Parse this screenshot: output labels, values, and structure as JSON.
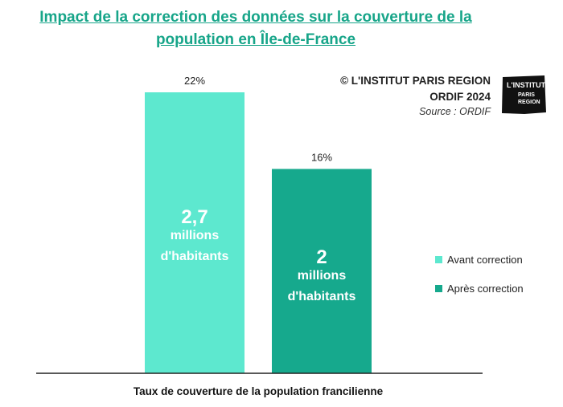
{
  "title": "Impact de la correction des données sur la couverture de la population en Île-de-France",
  "credit": {
    "line1": "© L'INSTITUT PARIS REGION",
    "line2": "ORDIF 2024",
    "line3": "Source : ORDIF"
  },
  "logo": {
    "lines": [
      "L'INSTITUT",
      "PARIS",
      "REGION"
    ],
    "color": "#111111"
  },
  "chart_data": {
    "type": "bar",
    "xlabel": "Taux de couverture de la population francilienne",
    "ylabel": "",
    "ylim": [
      0,
      25
    ],
    "grid": false,
    "legend_position": "right",
    "categories": [
      "Taux de couverture de la population francilienne"
    ],
    "series": [
      {
        "name": "Avant correction",
        "values": [
          22
        ],
        "data_label": "22%",
        "inner_label": [
          "2,7",
          "millions",
          "d'habitants"
        ],
        "color": "#5de8cf"
      },
      {
        "name": "Après correction",
        "values": [
          16
        ],
        "data_label": "16%",
        "inner_label": [
          "2",
          "millions",
          "d'habitants"
        ],
        "color": "#16a98d"
      }
    ]
  }
}
